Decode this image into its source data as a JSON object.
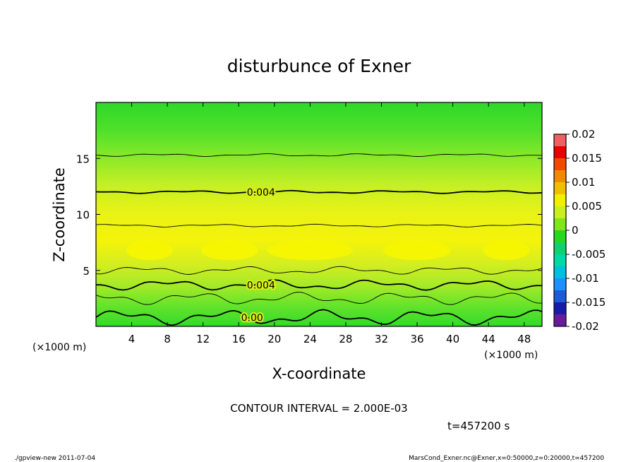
{
  "chart_data": {
    "type": "heatmap",
    "title": "disturbunce of Exner",
    "xlabel": "X-coordinate",
    "ylabel": "Z-coordinate",
    "x_unit": "(×1000 m)",
    "y_unit": "(×1000 m)",
    "xlim": [
      0,
      50
    ],
    "ylim": [
      0,
      20
    ],
    "x_ticks": [
      4,
      8,
      12,
      16,
      20,
      24,
      28,
      32,
      36,
      40,
      44,
      48
    ],
    "y_ticks": [
      5,
      10,
      15
    ],
    "colorbar": {
      "range": [
        -0.02,
        0.02
      ],
      "tick_labels": [
        "0.02",
        "0.015",
        "0.01",
        "0.005",
        "0",
        "-0.005",
        "-0.01",
        "-0.015",
        "-0.02"
      ],
      "tick_values": [
        0.02,
        0.015,
        0.01,
        0.005,
        0,
        -0.005,
        -0.01,
        -0.015,
        -0.02
      ],
      "colors": [
        "#6a1b9a",
        "#1a1aa8",
        "#1f5bd6",
        "#1e90ff",
        "#00bfe0",
        "#00d8a8",
        "#10d070",
        "#28d81e",
        "#7fe61a",
        "#c8f020",
        "#f0f000",
        "#f0c000",
        "#f08a00",
        "#f04a00",
        "#e60000",
        "#f06060"
      ]
    },
    "contours": [
      {
        "level": "0.00",
        "z_mean": 0.8,
        "bold": true,
        "labeled": true
      },
      {
        "level": "0.002",
        "z_mean": 2.5,
        "bold": false,
        "labeled": false
      },
      {
        "level": "0.004",
        "z_mean": 3.7,
        "bold": true,
        "labeled": true
      },
      {
        "level": "0.006",
        "z_mean": 5.0,
        "bold": false,
        "labeled": false
      },
      {
        "level": "0.006",
        "z_mean": 9.0,
        "bold": false,
        "labeled": false
      },
      {
        "level": "0.004",
        "z_mean": 12.0,
        "bold": true,
        "labeled": true
      },
      {
        "level": "0.002",
        "z_mean": 15.3,
        "bold": false,
        "labeled": false
      }
    ],
    "max_region": {
      "value_approx": 0.008,
      "z": 6.8
    }
  },
  "contour_interval_text": "CONTOUR INTERVAL = 2.000E-03",
  "time_text": "t=457200 s",
  "footer_left": "./gpview-new  2011-07-04",
  "footer_right": "MarsCond_Exner.nc@Exner,x=0:50000,z=0:20000,t=457200"
}
